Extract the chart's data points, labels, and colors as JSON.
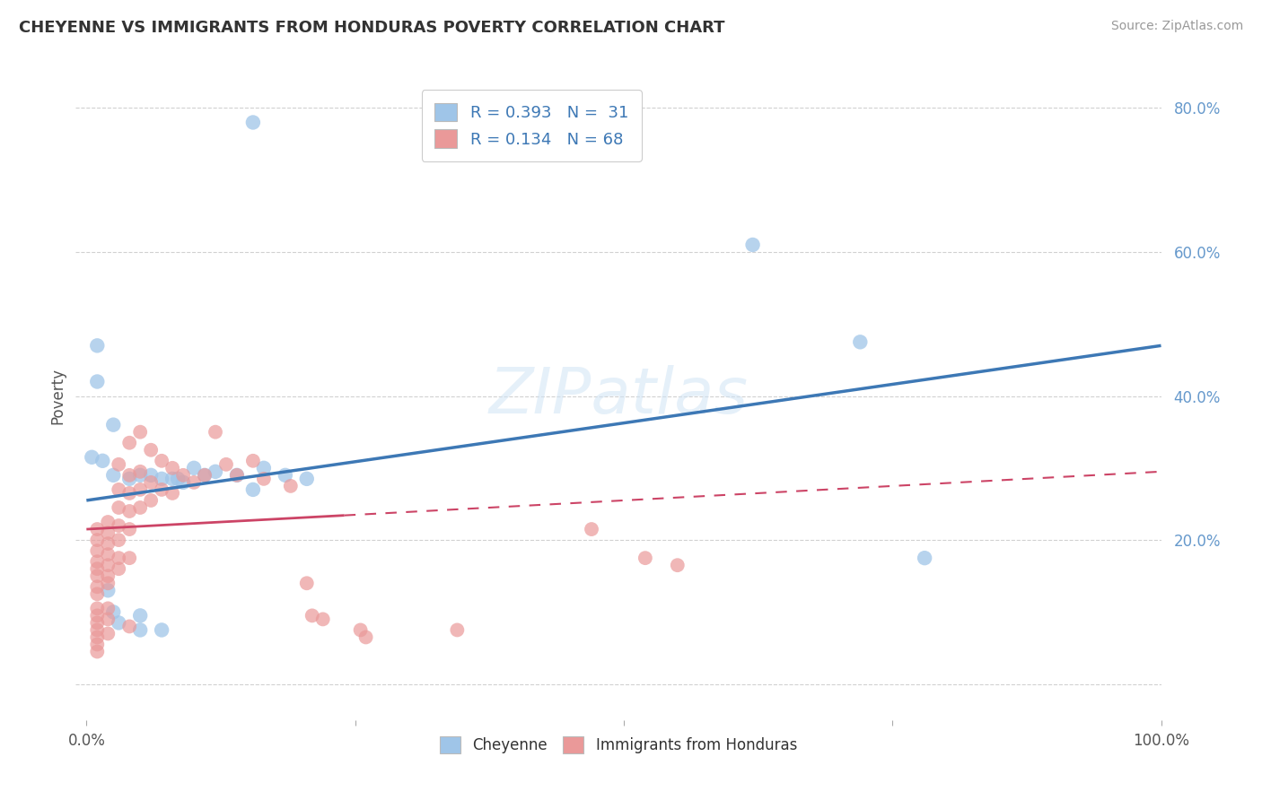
{
  "title": "CHEYENNE VS IMMIGRANTS FROM HONDURAS POVERTY CORRELATION CHART",
  "source": "Source: ZipAtlas.com",
  "ylabel": "Poverty",
  "legend_line1": "R = 0.393   N =  31",
  "legend_line2": "R = 0.134   N = 68",
  "cheyenne_color": "#9fc5e8",
  "honduras_color": "#ea9999",
  "cheyenne_line_color": "#3d78b5",
  "honduras_line_color": "#cc4466",
  "watermark": "ZIPatlas",
  "background_color": "#ffffff",
  "grid_color": "#cccccc",
  "ytick_color": "#6699cc",
  "cheyenne_points": [
    [
      0.155,
      0.78
    ],
    [
      0.01,
      0.47
    ],
    [
      0.01,
      0.42
    ],
    [
      0.025,
      0.36
    ],
    [
      0.005,
      0.315
    ],
    [
      0.015,
      0.31
    ],
    [
      0.025,
      0.29
    ],
    [
      0.04,
      0.285
    ],
    [
      0.05,
      0.29
    ],
    [
      0.06,
      0.29
    ],
    [
      0.07,
      0.285
    ],
    [
      0.08,
      0.285
    ],
    [
      0.085,
      0.285
    ],
    [
      0.09,
      0.28
    ],
    [
      0.1,
      0.3
    ],
    [
      0.11,
      0.29
    ],
    [
      0.12,
      0.295
    ],
    [
      0.14,
      0.29
    ],
    [
      0.155,
      0.27
    ],
    [
      0.165,
      0.3
    ],
    [
      0.185,
      0.29
    ],
    [
      0.205,
      0.285
    ],
    [
      0.02,
      0.13
    ],
    [
      0.025,
      0.1
    ],
    [
      0.03,
      0.085
    ],
    [
      0.05,
      0.095
    ],
    [
      0.05,
      0.075
    ],
    [
      0.07,
      0.075
    ],
    [
      0.62,
      0.61
    ],
    [
      0.72,
      0.475
    ],
    [
      0.78,
      0.175
    ]
  ],
  "honduras_points": [
    [
      0.01,
      0.215
    ],
    [
      0.01,
      0.2
    ],
    [
      0.01,
      0.185
    ],
    [
      0.01,
      0.17
    ],
    [
      0.01,
      0.16
    ],
    [
      0.01,
      0.15
    ],
    [
      0.01,
      0.135
    ],
    [
      0.01,
      0.125
    ],
    [
      0.01,
      0.105
    ],
    [
      0.01,
      0.095
    ],
    [
      0.01,
      0.085
    ],
    [
      0.01,
      0.075
    ],
    [
      0.01,
      0.065
    ],
    [
      0.01,
      0.055
    ],
    [
      0.01,
      0.045
    ],
    [
      0.02,
      0.225
    ],
    [
      0.02,
      0.21
    ],
    [
      0.02,
      0.195
    ],
    [
      0.02,
      0.18
    ],
    [
      0.02,
      0.165
    ],
    [
      0.02,
      0.15
    ],
    [
      0.02,
      0.14
    ],
    [
      0.02,
      0.105
    ],
    [
      0.02,
      0.09
    ],
    [
      0.02,
      0.07
    ],
    [
      0.03,
      0.305
    ],
    [
      0.03,
      0.27
    ],
    [
      0.03,
      0.245
    ],
    [
      0.03,
      0.22
    ],
    [
      0.03,
      0.2
    ],
    [
      0.03,
      0.175
    ],
    [
      0.03,
      0.16
    ],
    [
      0.04,
      0.335
    ],
    [
      0.04,
      0.29
    ],
    [
      0.04,
      0.265
    ],
    [
      0.04,
      0.24
    ],
    [
      0.04,
      0.215
    ],
    [
      0.04,
      0.175
    ],
    [
      0.04,
      0.08
    ],
    [
      0.05,
      0.35
    ],
    [
      0.05,
      0.295
    ],
    [
      0.05,
      0.27
    ],
    [
      0.05,
      0.245
    ],
    [
      0.06,
      0.325
    ],
    [
      0.06,
      0.28
    ],
    [
      0.06,
      0.255
    ],
    [
      0.07,
      0.31
    ],
    [
      0.07,
      0.27
    ],
    [
      0.08,
      0.3
    ],
    [
      0.08,
      0.265
    ],
    [
      0.09,
      0.29
    ],
    [
      0.1,
      0.28
    ],
    [
      0.11,
      0.29
    ],
    [
      0.12,
      0.35
    ],
    [
      0.13,
      0.305
    ],
    [
      0.14,
      0.29
    ],
    [
      0.155,
      0.31
    ],
    [
      0.165,
      0.285
    ],
    [
      0.19,
      0.275
    ],
    [
      0.205,
      0.14
    ],
    [
      0.21,
      0.095
    ],
    [
      0.22,
      0.09
    ],
    [
      0.255,
      0.075
    ],
    [
      0.26,
      0.065
    ],
    [
      0.345,
      0.075
    ],
    [
      0.47,
      0.215
    ],
    [
      0.52,
      0.175
    ],
    [
      0.55,
      0.165
    ]
  ],
  "cheyenne_slope": 0.215,
  "cheyenne_intercept": 0.255,
  "honduras_slope": 0.08,
  "honduras_intercept": 0.215
}
